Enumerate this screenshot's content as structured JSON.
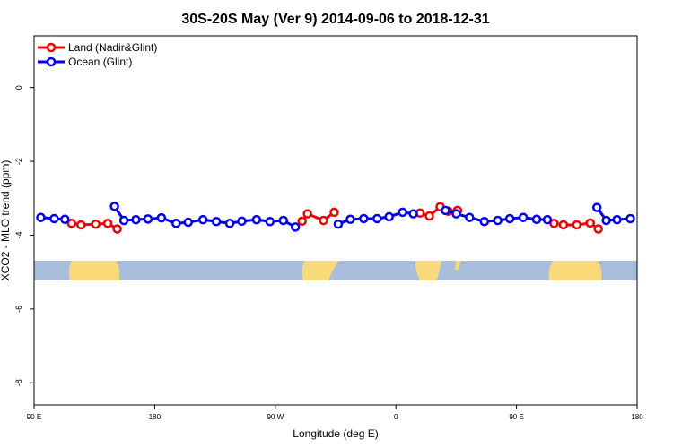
{
  "chart_data": {
    "type": "line",
    "title": "30S-20S May (Ver 9)   2014-09-06 to 2018-12-31",
    "xlabel": "Longitude (deg E)",
    "ylabel": "XCO2 - MLO trend (ppm)",
    "xlim": [
      90,
      540
    ],
    "ylim": [
      1.4,
      -8.6
    ],
    "xticks": [
      {
        "value": 90,
        "label": "90 E"
      },
      {
        "value": 180,
        "label": "180"
      },
      {
        "value": 270,
        "label": "90 W"
      },
      {
        "value": 360,
        "label": "0"
      },
      {
        "value": 450,
        "label": "90 E"
      },
      {
        "value": 540,
        "label": "180"
      }
    ],
    "yticks": [
      0,
      -2,
      -4,
      -6,
      -8
    ],
    "legend": "upper left",
    "series": [
      {
        "name": "Land (Nadir&Glint)",
        "color": "#ee0000",
        "x": [
          118,
          125,
          136,
          145,
          152,
          null,
          290,
          294,
          306,
          314,
          null,
          378,
          385,
          393,
          399,
          406,
          null,
          478,
          485,
          495,
          505,
          511
        ],
        "values": [
          -3.68,
          -3.72,
          -3.7,
          -3.68,
          -3.83,
          null,
          -3.62,
          -3.42,
          -3.6,
          -3.38,
          null,
          -3.4,
          -3.48,
          -3.23,
          -3.35,
          -3.33,
          null,
          -3.68,
          -3.72,
          -3.72,
          -3.67,
          -3.83
        ]
      },
      {
        "name": "Ocean (Glint)",
        "color": "#0000ee",
        "x": [
          95,
          105,
          113,
          null,
          150,
          157,
          166,
          175,
          185,
          196,
          205,
          216,
          226,
          236,
          245,
          256,
          266,
          276,
          285,
          null,
          317,
          326,
          336,
          346,
          355,
          365,
          373,
          null,
          397,
          405,
          415,
          426,
          436,
          445,
          455,
          465,
          473,
          null,
          510,
          517,
          525,
          535
        ],
        "values": [
          -3.52,
          -3.55,
          -3.57,
          null,
          -3.22,
          -3.6,
          -3.58,
          -3.56,
          -3.53,
          -3.68,
          -3.65,
          -3.58,
          -3.63,
          -3.68,
          -3.62,
          -3.58,
          -3.63,
          -3.6,
          -3.78,
          null,
          -3.7,
          -3.57,
          -3.55,
          -3.55,
          -3.5,
          -3.38,
          -3.42,
          null,
          -3.33,
          -3.42,
          -3.52,
          -3.63,
          -3.6,
          -3.55,
          -3.52,
          -3.57,
          -3.58,
          null,
          -3.25,
          -3.6,
          -3.58,
          -3.55
        ]
      }
    ]
  }
}
